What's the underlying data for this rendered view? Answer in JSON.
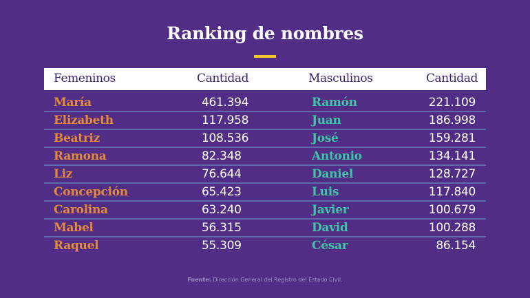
{
  "title": "Ranking de nombres",
  "colors": {
    "background": "#512d86",
    "accent_bar": "#f4c52a",
    "female_names": "#e5893a",
    "male_names": "#3fc6a6",
    "values": "#ffffff",
    "header_bg": "#ffffff",
    "header_text": "#3b2270",
    "divider": "#5e6cae"
  },
  "table": {
    "headers": [
      "Femeninos",
      "Cantidad",
      "Masculinos",
      "Cantidad"
    ],
    "rows": [
      {
        "female": "María",
        "female_count": "461.394",
        "male": "Ramón",
        "male_count": "221.109"
      },
      {
        "female": "Elizabeth",
        "female_count": "117.958",
        "male": "Juan",
        "male_count": "186.998"
      },
      {
        "female": "Beatriz",
        "female_count": "108.536",
        "male": "José",
        "male_count": "159.281"
      },
      {
        "female": "Ramona",
        "female_count": "82.348",
        "male": "Antonio",
        "male_count": "134.141"
      },
      {
        "female": "Liz",
        "female_count": "76.644",
        "male": "Daniel",
        "male_count": "128.727"
      },
      {
        "female": "Concepción",
        "female_count": "65.423",
        "male": "Luis",
        "male_count": "117.840"
      },
      {
        "female": "Carolina",
        "female_count": "63.240",
        "male": "Javier",
        "male_count": "100.679"
      },
      {
        "female": "Mabel",
        "female_count": "56.315",
        "male": "David",
        "male_count": "100.288"
      },
      {
        "female": "Raquel",
        "female_count": "55.309",
        "male": "César",
        "male_count": "86.154"
      }
    ]
  },
  "source": {
    "label": "Fuente:",
    "text": " Dirección General del Registro del Estado Civil."
  }
}
